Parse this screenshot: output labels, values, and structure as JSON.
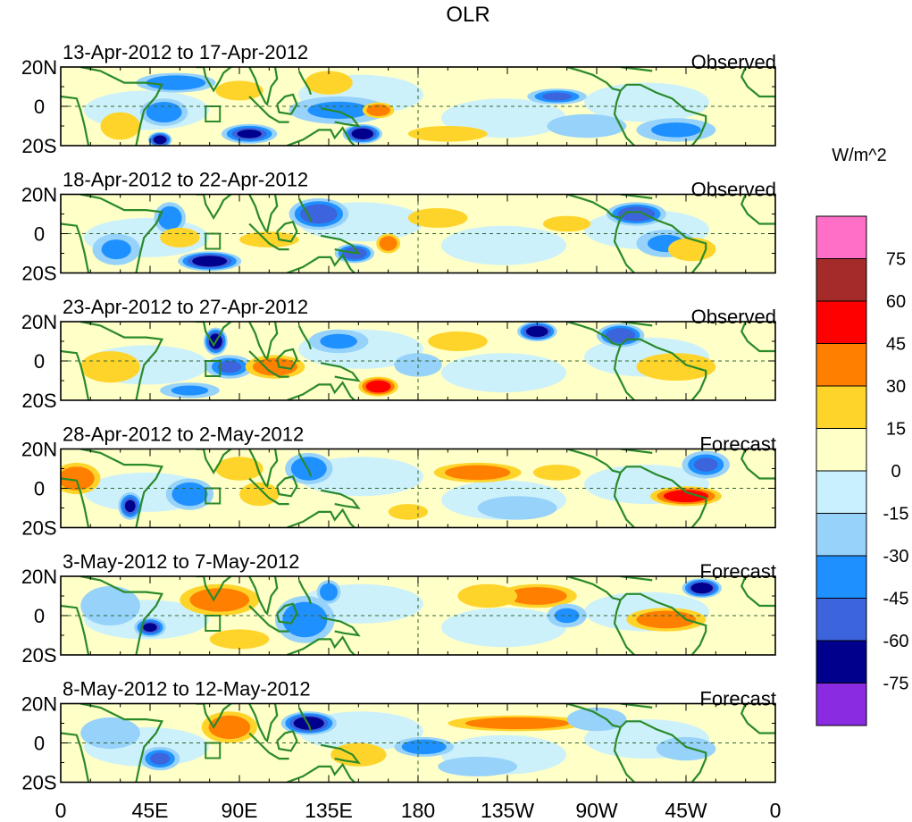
{
  "chart_data": {
    "type": "heatmap",
    "title": "OLR",
    "units": "W/m^2",
    "lat_labels": [
      "20N",
      "0",
      "20S"
    ],
    "lon_labels": [
      "0",
      "45E",
      "90E",
      "135E",
      "180",
      "135W",
      "90W",
      "45W",
      "0"
    ],
    "lon_range": [
      0,
      360
    ],
    "lat_range": [
      -20,
      20
    ],
    "colorbar": {
      "levels": [
        "75",
        "60",
        "45",
        "30",
        "15",
        "0",
        "-15",
        "-30",
        "-45",
        "-60",
        "-75"
      ],
      "colors": [
        "#ff6ec7",
        "#a52a2a",
        "#ff0000",
        "#ff7f00",
        "#ffd42a",
        "#ffffc8",
        "#c8f0ff",
        "#96d2fa",
        "#1e90ff",
        "#3c64dc",
        "#00008c",
        "#8a2be2"
      ]
    },
    "panels": [
      {
        "period": "13-Apr-2012 to 17-Apr-2012",
        "kind": "Observed"
      },
      {
        "period": "18-Apr-2012 to 22-Apr-2012",
        "kind": "Observed"
      },
      {
        "period": "23-Apr-2012 to 27-Apr-2012",
        "kind": "Observed"
      },
      {
        "period": "28-Apr-2012 to 2-May-2012",
        "kind": "Forecast"
      },
      {
        "period": "3-May-2012 to 7-May-2012",
        "kind": "Forecast"
      },
      {
        "period": "8-May-2012 to 12-May-2012",
        "kind": "Forecast"
      }
    ],
    "anomalies": [
      [
        {
          "lon": 52,
          "lat": -3,
          "v": -40,
          "rx": 12,
          "ry": 7
        },
        {
          "lon": 50,
          "lat": -17,
          "v": -70,
          "rx": 6,
          "ry": 4
        },
        {
          "lon": 95,
          "lat": -14,
          "v": -60,
          "rx": 14,
          "ry": 5
        },
        {
          "lon": 58,
          "lat": 12,
          "v": -35,
          "rx": 20,
          "ry": 5
        },
        {
          "lon": 140,
          "lat": -2,
          "v": -30,
          "rx": 25,
          "ry": 7
        },
        {
          "lon": 152,
          "lat": -14,
          "v": -70,
          "rx": 10,
          "ry": 5
        },
        {
          "lon": 135,
          "lat": 12,
          "v": 25,
          "rx": 12,
          "ry": 6
        },
        {
          "lon": 160,
          "lat": -2,
          "v": 40,
          "rx": 8,
          "ry": 4
        },
        {
          "lon": 90,
          "lat": 8,
          "v": 20,
          "rx": 12,
          "ry": 5
        },
        {
          "lon": 195,
          "lat": -14,
          "v": 25,
          "rx": 20,
          "ry": 4
        },
        {
          "lon": 265,
          "lat": -10,
          "v": -25,
          "rx": 20,
          "ry": 6
        },
        {
          "lon": 250,
          "lat": 5,
          "v": -45,
          "rx": 15,
          "ry": 4
        },
        {
          "lon": 310,
          "lat": -12,
          "v": -30,
          "rx": 20,
          "ry": 6
        },
        {
          "lon": 30,
          "lat": -10,
          "v": 20,
          "rx": 10,
          "ry": 7
        }
      ],
      [
        {
          "lon": 75,
          "lat": -14,
          "v": -65,
          "rx": 16,
          "ry": 5
        },
        {
          "lon": 55,
          "lat": 8,
          "v": -40,
          "rx": 8,
          "ry": 8
        },
        {
          "lon": 130,
          "lat": 10,
          "v": -50,
          "rx": 15,
          "ry": 8
        },
        {
          "lon": 60,
          "lat": -2,
          "v": 30,
          "rx": 10,
          "ry": 5
        },
        {
          "lon": 105,
          "lat": -3,
          "v": 30,
          "rx": 15,
          "ry": 4
        },
        {
          "lon": 148,
          "lat": -10,
          "v": -55,
          "rx": 10,
          "ry": 5
        },
        {
          "lon": 165,
          "lat": -5,
          "v": 35,
          "rx": 6,
          "ry": 5
        },
        {
          "lon": 190,
          "lat": 8,
          "v": 20,
          "rx": 15,
          "ry": 5
        },
        {
          "lon": 255,
          "lat": 5,
          "v": 25,
          "rx": 12,
          "ry": 4
        },
        {
          "lon": 290,
          "lat": 10,
          "v": -50,
          "rx": 15,
          "ry": 6
        },
        {
          "lon": 305,
          "lat": -5,
          "v": -30,
          "rx": 15,
          "ry": 7
        },
        {
          "lon": 318,
          "lat": -8,
          "v": 25,
          "rx": 12,
          "ry": 6
        },
        {
          "lon": 28,
          "lat": -8,
          "v": -30,
          "rx": 12,
          "ry": 8
        }
      ],
      [
        {
          "lon": 78,
          "lat": 10,
          "v": -70,
          "rx": 6,
          "ry": 7
        },
        {
          "lon": 85,
          "lat": -3,
          "v": -45,
          "rx": 12,
          "ry": 6
        },
        {
          "lon": 108,
          "lat": -3,
          "v": 45,
          "rx": 15,
          "ry": 6
        },
        {
          "lon": 160,
          "lat": -13,
          "v": 55,
          "rx": 10,
          "ry": 5
        },
        {
          "lon": 180,
          "lat": -2,
          "v": -25,
          "rx": 12,
          "ry": 6
        },
        {
          "lon": 240,
          "lat": 15,
          "v": -70,
          "rx": 10,
          "ry": 5
        },
        {
          "lon": 282,
          "lat": 13,
          "v": -50,
          "rx": 12,
          "ry": 6
        },
        {
          "lon": 310,
          "lat": -3,
          "v": 25,
          "rx": 20,
          "ry": 7
        },
        {
          "lon": 25,
          "lat": -3,
          "v": 30,
          "rx": 15,
          "ry": 8
        },
        {
          "lon": 65,
          "lat": -15,
          "v": -30,
          "rx": 15,
          "ry": 4
        },
        {
          "lon": 140,
          "lat": 10,
          "v": -30,
          "rx": 15,
          "ry": 6
        },
        {
          "lon": 200,
          "lat": 10,
          "v": 20,
          "rx": 15,
          "ry": 5
        }
      ],
      [
        {
          "lon": 35,
          "lat": -9,
          "v": -60,
          "rx": 6,
          "ry": 7
        },
        {
          "lon": 8,
          "lat": 5,
          "v": 40,
          "rx": 12,
          "ry": 8
        },
        {
          "lon": 65,
          "lat": -3,
          "v": -40,
          "rx": 12,
          "ry": 8
        },
        {
          "lon": 90,
          "lat": 10,
          "v": 30,
          "rx": 12,
          "ry": 6
        },
        {
          "lon": 125,
          "lat": 10,
          "v": -40,
          "rx": 12,
          "ry": 8
        },
        {
          "lon": 210,
          "lat": 8,
          "v": 35,
          "rx": 22,
          "ry": 5
        },
        {
          "lon": 250,
          "lat": 8,
          "v": 25,
          "rx": 12,
          "ry": 4
        },
        {
          "lon": 315,
          "lat": -4,
          "v": 50,
          "rx": 18,
          "ry": 5
        },
        {
          "lon": 325,
          "lat": 12,
          "v": -45,
          "rx": 12,
          "ry": 7
        },
        {
          "lon": 175,
          "lat": -12,
          "v": 25,
          "rx": 10,
          "ry": 4
        },
        {
          "lon": 230,
          "lat": -10,
          "v": -20,
          "rx": 20,
          "ry": 6
        },
        {
          "lon": 100,
          "lat": -3,
          "v": 25,
          "rx": 10,
          "ry": 6
        }
      ],
      [
        {
          "lon": 80,
          "lat": 8,
          "v": 40,
          "rx": 20,
          "ry": 8
        },
        {
          "lon": 45,
          "lat": -6,
          "v": -60,
          "rx": 8,
          "ry": 5
        },
        {
          "lon": 123,
          "lat": -2,
          "v": -35,
          "rx": 15,
          "ry": 12
        },
        {
          "lon": 135,
          "lat": 12,
          "v": -40,
          "rx": 6,
          "ry": 6
        },
        {
          "lon": 240,
          "lat": 10,
          "v": 45,
          "rx": 20,
          "ry": 6
        },
        {
          "lon": 215,
          "lat": 10,
          "v": 20,
          "rx": 15,
          "ry": 6
        },
        {
          "lon": 323,
          "lat": 14,
          "v": -70,
          "rx": 10,
          "ry": 5
        },
        {
          "lon": 305,
          "lat": -2,
          "v": 40,
          "rx": 20,
          "ry": 6
        },
        {
          "lon": 255,
          "lat": 0,
          "v": -30,
          "rx": 10,
          "ry": 6
        },
        {
          "lon": 25,
          "lat": 5,
          "v": -20,
          "rx": 15,
          "ry": 10
        },
        {
          "lon": 90,
          "lat": -12,
          "v": 20,
          "rx": 15,
          "ry": 5
        }
      ],
      [
        {
          "lon": 85,
          "lat": 8,
          "v": 35,
          "rx": 14,
          "ry": 8
        },
        {
          "lon": 125,
          "lat": 10,
          "v": -65,
          "rx": 14,
          "ry": 6
        },
        {
          "lon": 230,
          "lat": 10,
          "v": 35,
          "rx": 35,
          "ry": 4
        },
        {
          "lon": 183,
          "lat": -2,
          "v": -35,
          "rx": 15,
          "ry": 5
        },
        {
          "lon": 270,
          "lat": 12,
          "v": -25,
          "rx": 15,
          "ry": 6
        },
        {
          "lon": 315,
          "lat": -3,
          "v": -25,
          "rx": 15,
          "ry": 6
        },
        {
          "lon": 50,
          "lat": -8,
          "v": -45,
          "rx": 10,
          "ry": 6
        },
        {
          "lon": 150,
          "lat": -6,
          "v": 25,
          "rx": 14,
          "ry": 6
        },
        {
          "lon": 25,
          "lat": 5,
          "v": -25,
          "rx": 15,
          "ry": 8
        },
        {
          "lon": 210,
          "lat": -12,
          "v": -20,
          "rx": 20,
          "ry": 5
        }
      ]
    ]
  }
}
